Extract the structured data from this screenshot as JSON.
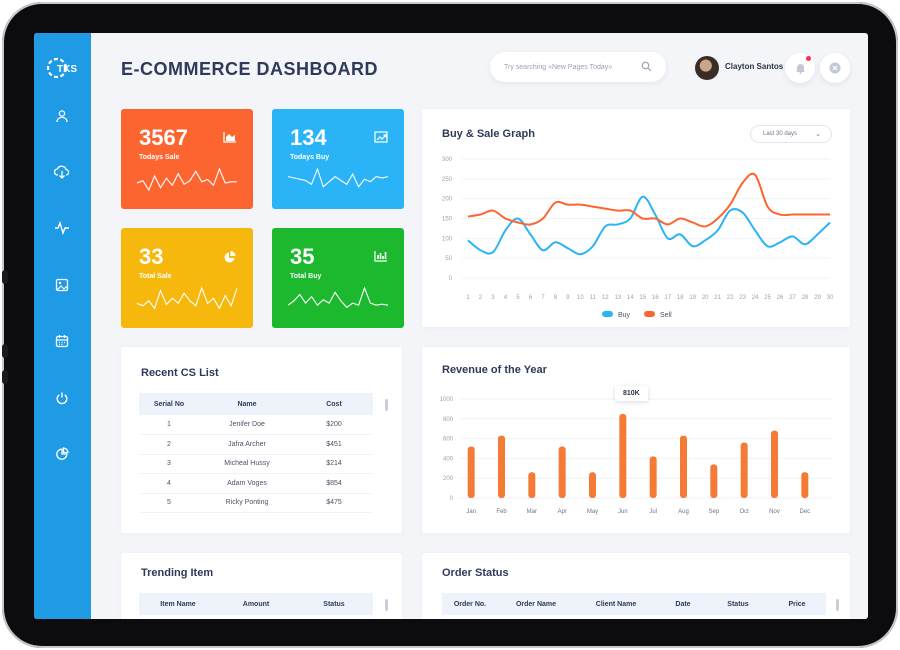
{
  "header": {
    "title": "E-COMMERCE DASHBOARD",
    "search_placeholder": "Try searching «New Pages Today»",
    "user_name": "Clayton Santos"
  },
  "logo": {
    "text": "TKS"
  },
  "sidebar": {
    "items": [
      {
        "icon": "user-icon"
      },
      {
        "icon": "cloud-download-icon"
      },
      {
        "icon": "activity-icon"
      },
      {
        "icon": "image-icon"
      },
      {
        "icon": "calendar-icon"
      },
      {
        "icon": "power-icon"
      },
      {
        "icon": "pie-chart-icon"
      }
    ]
  },
  "stats": [
    {
      "value": "3567",
      "label": "Todays Sale",
      "color": "#fd6530",
      "icon": "area-chart-icon"
    },
    {
      "value": "134",
      "label": "Todays Buy",
      "color": "#2ab4f7",
      "icon": "trending-chart-icon"
    },
    {
      "value": "33",
      "label": "Total Sale",
      "color": "#f6b80d",
      "icon": "pie-chart-icon"
    },
    {
      "value": "35",
      "label": "Total Buy",
      "color": "#1cb92e",
      "icon": "bar-chart-icon"
    }
  ],
  "buy_sale": {
    "title": "Buy & Sale Graph",
    "range": "Last 30 days",
    "legend": [
      "Buy",
      "Sell"
    ]
  },
  "revenue": {
    "title": "Revenue of the Year",
    "tooltip": "810K"
  },
  "cs_list": {
    "title": "Recent CS List",
    "columns": [
      "Serial No",
      "Name",
      "Cost"
    ],
    "rows": [
      [
        "1",
        "Jenifer Doe",
        "$200"
      ],
      [
        "2",
        "Jafra Archer",
        "$451"
      ],
      [
        "3",
        "Micheal Hussy",
        "$214"
      ],
      [
        "4",
        "Adam Voges",
        "$854"
      ],
      [
        "5",
        "Ricky Ponting",
        "$475"
      ]
    ]
  },
  "trending": {
    "title": "Trending Item",
    "columns": [
      "Item Name",
      "Amount",
      "Status"
    ]
  },
  "orders": {
    "title": "Order Status",
    "columns": [
      "Order No.",
      "Order Name",
      "Client Name",
      "Date",
      "Status",
      "Price"
    ]
  },
  "chart_data": [
    {
      "type": "line",
      "title": "Buy & Sale Graph",
      "x": [
        1,
        2,
        3,
        4,
        5,
        6,
        7,
        8,
        9,
        10,
        11,
        12,
        13,
        14,
        15,
        16,
        17,
        18,
        19,
        20,
        21,
        22,
        23,
        24,
        25,
        26,
        27,
        28,
        29,
        30
      ],
      "ylim": [
        0,
        300
      ],
      "yticks": [
        0,
        50,
        100,
        150,
        200,
        250,
        300
      ],
      "series": [
        {
          "name": "Buy",
          "color": "#2ab4f7",
          "values": [
            95,
            70,
            65,
            120,
            150,
            110,
            70,
            90,
            75,
            60,
            80,
            130,
            135,
            150,
            205,
            160,
            100,
            110,
            80,
            95,
            120,
            170,
            165,
            120,
            80,
            90,
            105,
            85,
            110,
            140
          ]
        },
        {
          "name": "Sell",
          "color": "#fd6530",
          "values": [
            155,
            160,
            170,
            150,
            140,
            135,
            150,
            190,
            185,
            185,
            180,
            175,
            170,
            170,
            150,
            150,
            135,
            150,
            140,
            130,
            150,
            185,
            240,
            260,
            180,
            160,
            160,
            160,
            160,
            160
          ]
        }
      ]
    },
    {
      "type": "bar",
      "title": "Revenue of the Year",
      "categories": [
        "Jan",
        "Feb",
        "Mar",
        "Apr",
        "May",
        "Jun",
        "Jul",
        "Aug",
        "Sep",
        "Oct",
        "Nov",
        "Dec"
      ],
      "ylim": [
        0,
        1000
      ],
      "yticks": [
        0,
        200,
        400,
        600,
        800,
        1000
      ],
      "color": "#f47b36",
      "values": [
        520,
        630,
        260,
        520,
        260,
        850,
        420,
        630,
        340,
        560,
        680,
        260
      ]
    },
    {
      "type": "line",
      "sparklines": [
        {
          "color": "#ffffff",
          "values": [
            12,
            14,
            6,
            18,
            8,
            16,
            10,
            20,
            11,
            14,
            22,
            13,
            15,
            10,
            24,
            12,
            13,
            13
          ]
        },
        {
          "color": "#ffffff",
          "values": [
            16,
            15,
            14,
            13,
            10,
            22,
            8,
            12,
            16,
            13,
            10,
            18,
            8,
            14,
            12,
            16,
            15,
            16
          ]
        },
        {
          "color": "#ffffff",
          "values": [
            10,
            8,
            12,
            6,
            20,
            9,
            14,
            10,
            18,
            12,
            8,
            22,
            10,
            14,
            6,
            16,
            8,
            22
          ]
        },
        {
          "color": "#ffffff",
          "values": [
            10,
            14,
            20,
            12,
            18,
            10,
            15,
            12,
            22,
            14,
            8,
            12,
            10,
            26,
            12,
            10,
            11,
            10
          ]
        }
      ]
    }
  ]
}
